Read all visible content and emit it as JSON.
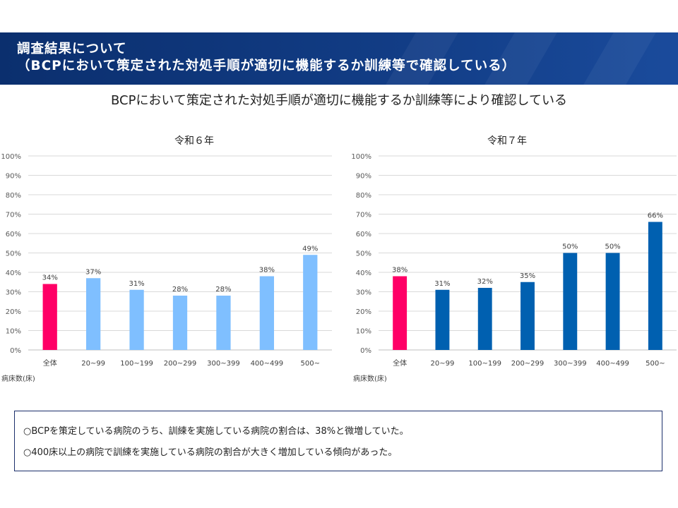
{
  "header": {
    "line1": "調査結果について",
    "line2": "（BCPにおいて策定された対処手順が適切に機能するか訓練等で確認している）"
  },
  "subtitle": "BCPにおいて策定された対処手順が適切に機能するか訓練等により確認している",
  "colors": {
    "header_bg": "#0b2f6e",
    "highlight_bar": "#ff0066",
    "r6_bar": "#7fbfff",
    "r7_bar": "#0060b0",
    "note_border": "#1b2f6b"
  },
  "chart_data": [
    {
      "type": "bar",
      "title": "令和６年",
      "xlabel": "病床数(床)",
      "ylabel": "",
      "ylim": [
        0,
        100
      ],
      "yticks": [
        "0%",
        "10%",
        "20%",
        "30%",
        "40%",
        "50%",
        "60%",
        "70%",
        "80%",
        "90%",
        "100%"
      ],
      "grid": true,
      "categories": [
        "全体",
        "20~99",
        "100~199",
        "200~299",
        "300~399",
        "400~499",
        "500~"
      ],
      "values": [
        34,
        37,
        31,
        28,
        28,
        38,
        49
      ],
      "labels": [
        "34%",
        "37%",
        "31%",
        "28%",
        "28%",
        "38%",
        "49%"
      ]
    },
    {
      "type": "bar",
      "title": "令和７年",
      "xlabel": "病床数(床)",
      "ylabel": "",
      "ylim": [
        0,
        100
      ],
      "yticks": [
        "0%",
        "10%",
        "20%",
        "30%",
        "40%",
        "50%",
        "60%",
        "70%",
        "80%",
        "90%",
        "100%"
      ],
      "grid": true,
      "categories": [
        "全体",
        "20~99",
        "100~199",
        "200~299",
        "300~399",
        "400~499",
        "500~"
      ],
      "values": [
        38,
        31,
        32,
        35,
        50,
        50,
        66
      ],
      "labels": [
        "38%",
        "31%",
        "32%",
        "35%",
        "50%",
        "50%",
        "66%"
      ]
    }
  ],
  "notes": [
    "○BCPを策定している病院のうち、訓練を実施している病院の割合は、38%と微増していた。",
    "○400床以上の病院で訓練を実施している病院の割合が大きく増加している傾向があった。"
  ]
}
